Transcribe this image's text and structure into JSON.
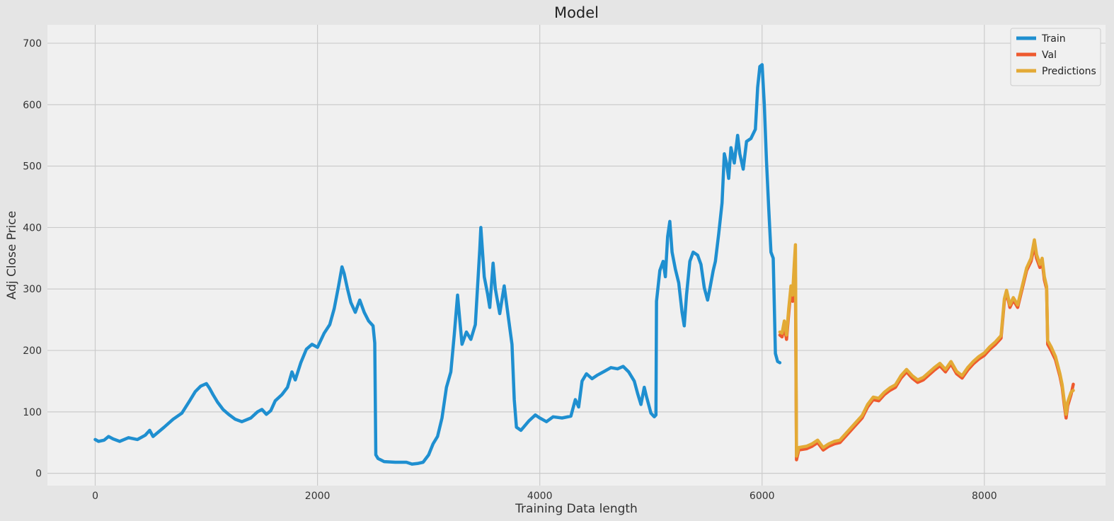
{
  "chart_data": {
    "type": "line",
    "title": "Model",
    "xlabel": "Training Data length",
    "ylabel": "Adj Close Price",
    "xlim": [
      -430,
      9090
    ],
    "ylim": [
      -20,
      730
    ],
    "xticks": [
      0,
      2000,
      4000,
      6000,
      8000
    ],
    "yticks": [
      0,
      100,
      200,
      300,
      400,
      500,
      600,
      700
    ],
    "grid": true,
    "legend_position": "top-right",
    "series": [
      {
        "name": "Train",
        "color": "#1f8fd0",
        "points": [
          [
            0,
            55
          ],
          [
            30,
            52
          ],
          [
            80,
            54
          ],
          [
            120,
            60
          ],
          [
            160,
            56
          ],
          [
            220,
            52
          ],
          [
            300,
            58
          ],
          [
            380,
            55
          ],
          [
            450,
            62
          ],
          [
            490,
            70
          ],
          [
            520,
            60
          ],
          [
            560,
            66
          ],
          [
            620,
            75
          ],
          [
            700,
            88
          ],
          [
            780,
            98
          ],
          [
            850,
            118
          ],
          [
            900,
            133
          ],
          [
            950,
            142
          ],
          [
            1000,
            146
          ],
          [
            1030,
            138
          ],
          [
            1060,
            128
          ],
          [
            1100,
            116
          ],
          [
            1150,
            104
          ],
          [
            1200,
            96
          ],
          [
            1260,
            88
          ],
          [
            1320,
            84
          ],
          [
            1400,
            90
          ],
          [
            1460,
            100
          ],
          [
            1500,
            104
          ],
          [
            1540,
            96
          ],
          [
            1580,
            102
          ],
          [
            1620,
            118
          ],
          [
            1680,
            128
          ],
          [
            1730,
            140
          ],
          [
            1770,
            165
          ],
          [
            1800,
            152
          ],
          [
            1850,
            180
          ],
          [
            1900,
            202
          ],
          [
            1950,
            210
          ],
          [
            2000,
            205
          ],
          [
            2060,
            228
          ],
          [
            2110,
            242
          ],
          [
            2150,
            268
          ],
          [
            2190,
            305
          ],
          [
            2220,
            336
          ],
          [
            2240,
            325
          ],
          [
            2270,
            300
          ],
          [
            2300,
            278
          ],
          [
            2340,
            262
          ],
          [
            2380,
            282
          ],
          [
            2420,
            262
          ],
          [
            2460,
            248
          ],
          [
            2500,
            240
          ],
          [
            2515,
            212
          ],
          [
            2525,
            30
          ],
          [
            2545,
            24
          ],
          [
            2600,
            19
          ],
          [
            2700,
            18
          ],
          [
            2800,
            18
          ],
          [
            2850,
            15
          ],
          [
            2900,
            16
          ],
          [
            2950,
            18
          ],
          [
            3000,
            30
          ],
          [
            3040,
            48
          ],
          [
            3080,
            60
          ],
          [
            3120,
            90
          ],
          [
            3160,
            140
          ],
          [
            3200,
            165
          ],
          [
            3230,
            225
          ],
          [
            3260,
            290
          ],
          [
            3280,
            250
          ],
          [
            3300,
            210
          ],
          [
            3340,
            230
          ],
          [
            3380,
            218
          ],
          [
            3420,
            242
          ],
          [
            3460,
            365
          ],
          [
            3470,
            400
          ],
          [
            3500,
            320
          ],
          [
            3530,
            292
          ],
          [
            3550,
            270
          ],
          [
            3580,
            342
          ],
          [
            3600,
            300
          ],
          [
            3640,
            260
          ],
          [
            3680,
            305
          ],
          [
            3720,
            250
          ],
          [
            3750,
            210
          ],
          [
            3770,
            120
          ],
          [
            3790,
            75
          ],
          [
            3830,
            70
          ],
          [
            3900,
            85
          ],
          [
            3960,
            95
          ],
          [
            4000,
            90
          ],
          [
            4060,
            84
          ],
          [
            4120,
            92
          ],
          [
            4200,
            90
          ],
          [
            4280,
            93
          ],
          [
            4320,
            120
          ],
          [
            4350,
            108
          ],
          [
            4380,
            150
          ],
          [
            4420,
            162
          ],
          [
            4470,
            154
          ],
          [
            4520,
            160
          ],
          [
            4580,
            166
          ],
          [
            4640,
            172
          ],
          [
            4700,
            170
          ],
          [
            4750,
            174
          ],
          [
            4800,
            165
          ],
          [
            4850,
            150
          ],
          [
            4880,
            130
          ],
          [
            4910,
            112
          ],
          [
            4940,
            140
          ],
          [
            4960,
            125
          ],
          [
            5000,
            98
          ],
          [
            5030,
            92
          ],
          [
            5045,
            95
          ],
          [
            5050,
            280
          ],
          [
            5080,
            330
          ],
          [
            5110,
            345
          ],
          [
            5130,
            320
          ],
          [
            5150,
            385
          ],
          [
            5170,
            410
          ],
          [
            5190,
            360
          ],
          [
            5220,
            332
          ],
          [
            5250,
            310
          ],
          [
            5280,
            262
          ],
          [
            5300,
            240
          ],
          [
            5320,
            290
          ],
          [
            5350,
            345
          ],
          [
            5380,
            360
          ],
          [
            5420,
            355
          ],
          [
            5450,
            340
          ],
          [
            5480,
            302
          ],
          [
            5510,
            282
          ],
          [
            5530,
            300
          ],
          [
            5560,
            330
          ],
          [
            5580,
            345
          ],
          [
            5610,
            390
          ],
          [
            5640,
            440
          ],
          [
            5660,
            520
          ],
          [
            5680,
            505
          ],
          [
            5700,
            480
          ],
          [
            5720,
            530
          ],
          [
            5750,
            505
          ],
          [
            5780,
            550
          ],
          [
            5800,
            520
          ],
          [
            5830,
            495
          ],
          [
            5860,
            540
          ],
          [
            5900,
            545
          ],
          [
            5940,
            560
          ],
          [
            5960,
            628
          ],
          [
            5980,
            662
          ],
          [
            6000,
            665
          ],
          [
            6020,
            600
          ],
          [
            6040,
            508
          ],
          [
            6060,
            430
          ],
          [
            6080,
            360
          ],
          [
            6100,
            350
          ],
          [
            6120,
            195
          ],
          [
            6140,
            182
          ],
          [
            6160,
            180
          ]
        ]
      },
      {
        "name": " Val",
        "color": "#ee5a2f",
        "points": [
          [
            6160,
            225
          ],
          [
            6180,
            222
          ],
          [
            6200,
            240
          ],
          [
            6220,
            218
          ],
          [
            6240,
            260
          ],
          [
            6260,
            300
          ],
          [
            6275,
            280
          ],
          [
            6290,
            335
          ],
          [
            6300,
            318
          ],
          [
            6310,
            22
          ],
          [
            6330,
            38
          ],
          [
            6400,
            40
          ],
          [
            6450,
            44
          ],
          [
            6500,
            50
          ],
          [
            6550,
            38
          ],
          [
            6600,
            44
          ],
          [
            6650,
            48
          ],
          [
            6700,
            50
          ],
          [
            6750,
            60
          ],
          [
            6800,
            70
          ],
          [
            6850,
            80
          ],
          [
            6900,
            90
          ],
          [
            6950,
            108
          ],
          [
            7000,
            120
          ],
          [
            7050,
            118
          ],
          [
            7100,
            128
          ],
          [
            7150,
            135
          ],
          [
            7200,
            140
          ],
          [
            7250,
            155
          ],
          [
            7300,
            165
          ],
          [
            7350,
            155
          ],
          [
            7400,
            148
          ],
          [
            7450,
            152
          ],
          [
            7500,
            160
          ],
          [
            7550,
            168
          ],
          [
            7600,
            175
          ],
          [
            7650,
            165
          ],
          [
            7700,
            178
          ],
          [
            7750,
            162
          ],
          [
            7800,
            155
          ],
          [
            7850,
            168
          ],
          [
            7900,
            178
          ],
          [
            7950,
            186
          ],
          [
            8000,
            192
          ],
          [
            8050,
            202
          ],
          [
            8100,
            210
          ],
          [
            8150,
            220
          ],
          [
            8180,
            280
          ],
          [
            8200,
            295
          ],
          [
            8230,
            270
          ],
          [
            8260,
            282
          ],
          [
            8300,
            270
          ],
          [
            8340,
            300
          ],
          [
            8380,
            330
          ],
          [
            8420,
            345
          ],
          [
            8450,
            370
          ],
          [
            8470,
            350
          ],
          [
            8500,
            335
          ],
          [
            8520,
            345
          ],
          [
            8540,
            315
          ],
          [
            8560,
            300
          ],
          [
            8570,
            210
          ],
          [
            8600,
            200
          ],
          [
            8640,
            185
          ],
          [
            8680,
            158
          ],
          [
            8700,
            140
          ],
          [
            8720,
            110
          ],
          [
            8735,
            90
          ],
          [
            8750,
            110
          ],
          [
            8780,
            128
          ],
          [
            8800,
            145
          ]
        ]
      },
      {
        "name": "Predictions",
        "color": "#e3aa36",
        "points": [
          [
            6160,
            230
          ],
          [
            6180,
            228
          ],
          [
            6200,
            248
          ],
          [
            6220,
            225
          ],
          [
            6240,
            268
          ],
          [
            6260,
            305
          ],
          [
            6275,
            290
          ],
          [
            6290,
            342
          ],
          [
            6300,
            372
          ],
          [
            6310,
            28
          ],
          [
            6330,
            42
          ],
          [
            6400,
            44
          ],
          [
            6450,
            48
          ],
          [
            6500,
            54
          ],
          [
            6550,
            42
          ],
          [
            6600,
            48
          ],
          [
            6650,
            52
          ],
          [
            6700,
            54
          ],
          [
            6750,
            64
          ],
          [
            6800,
            74
          ],
          [
            6850,
            84
          ],
          [
            6900,
            94
          ],
          [
            6950,
            112
          ],
          [
            7000,
            124
          ],
          [
            7050,
            122
          ],
          [
            7100,
            132
          ],
          [
            7150,
            139
          ],
          [
            7200,
            144
          ],
          [
            7250,
            159
          ],
          [
            7300,
            169
          ],
          [
            7350,
            159
          ],
          [
            7400,
            152
          ],
          [
            7450,
            156
          ],
          [
            7500,
            164
          ],
          [
            7550,
            172
          ],
          [
            7600,
            179
          ],
          [
            7650,
            169
          ],
          [
            7700,
            182
          ],
          [
            7750,
            166
          ],
          [
            7800,
            159
          ],
          [
            7850,
            172
          ],
          [
            7900,
            182
          ],
          [
            7950,
            190
          ],
          [
            8000,
            196
          ],
          [
            8050,
            206
          ],
          [
            8100,
            214
          ],
          [
            8150,
            224
          ],
          [
            8180,
            284
          ],
          [
            8200,
            298
          ],
          [
            8230,
            274
          ],
          [
            8260,
            286
          ],
          [
            8300,
            274
          ],
          [
            8340,
            304
          ],
          [
            8380,
            334
          ],
          [
            8420,
            350
          ],
          [
            8450,
            380
          ],
          [
            8470,
            356
          ],
          [
            8500,
            340
          ],
          [
            8520,
            350
          ],
          [
            8540,
            320
          ],
          [
            8560,
            304
          ],
          [
            8570,
            216
          ],
          [
            8600,
            206
          ],
          [
            8640,
            190
          ],
          [
            8680,
            162
          ],
          [
            8700,
            144
          ],
          [
            8720,
            116
          ],
          [
            8735,
            96
          ],
          [
            8750,
            116
          ],
          [
            8780,
            132
          ],
          [
            8800,
            135
          ]
        ]
      }
    ]
  }
}
